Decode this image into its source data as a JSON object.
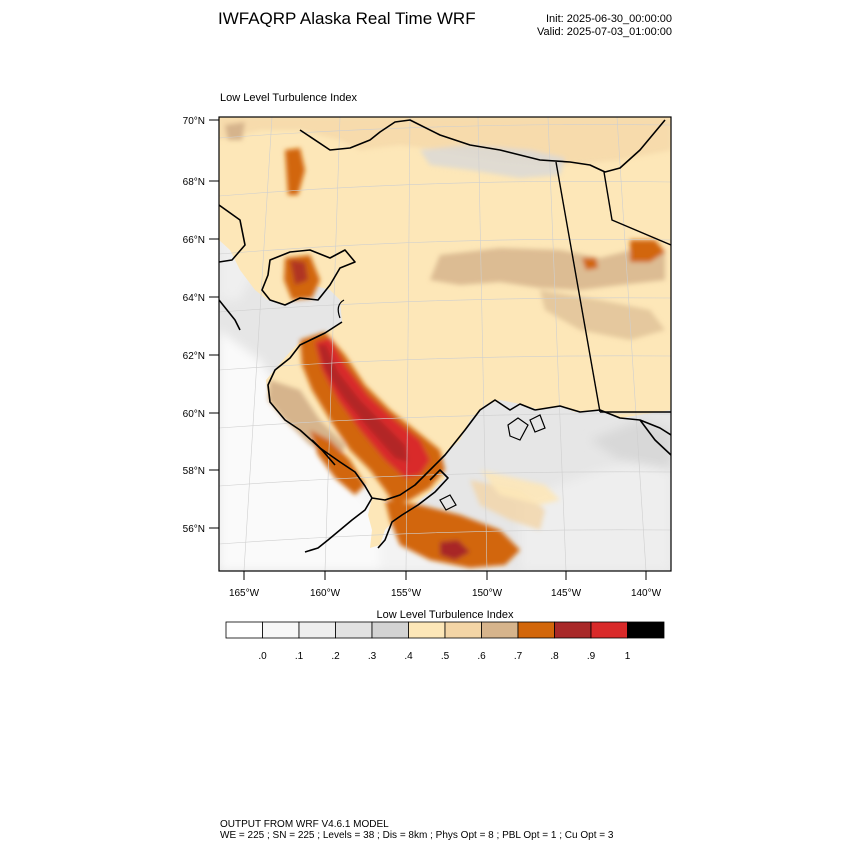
{
  "header": {
    "title": "IWFAQRP Alaska Real Time WRF",
    "init": "Init: 2025-06-30_00:00:00",
    "valid": "Valid: 2025-07-03_01:00:00"
  },
  "map": {
    "panel_title": "Low Level Turbulence Index",
    "lat_labels": [
      "70°N",
      "68°N",
      "66°N",
      "64°N",
      "62°N",
      "60°N",
      "58°N",
      "56°N"
    ],
    "lon_labels": [
      "165°W",
      "160°W",
      "155°W",
      "150°W",
      "145°W",
      "140°W"
    ]
  },
  "colorbar": {
    "title": "Low Level Turbulence Index",
    "tick_labels": [
      ".0",
      ".1",
      ".2",
      ".3",
      ".4",
      ".5",
      ".6",
      ".7",
      ".8",
      ".9",
      "1"
    ],
    "colors": [
      "#ffffff",
      "#f7f7f7",
      "#eeeeee",
      "#e2e2e2",
      "#d3d3d3",
      "#fde7b8",
      "#f3d5a6",
      "#d6b48c",
      "#d2660a",
      "#a82828",
      "#d92a2a",
      "#000000"
    ]
  },
  "footer": {
    "line1": "OUTPUT FROM WRF V4.6.1 MODEL",
    "line2": "WE = 225 ; SN = 225 ; Levels = 38 ; Dis = 8km ; Phys Opt = 8 ; PBL Opt = 1 ; Cu Opt = 3"
  }
}
